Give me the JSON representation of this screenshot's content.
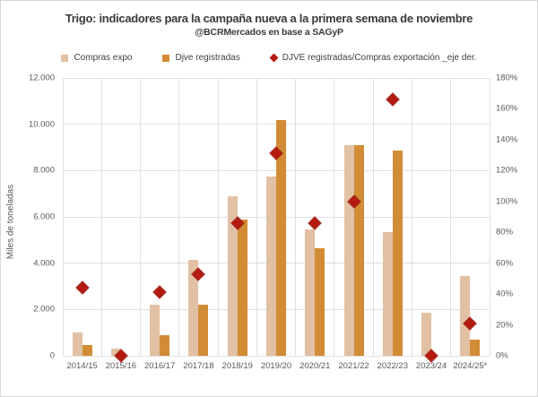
{
  "header": {
    "title": "Trigo: indicadores para la campaña nueva a la primera semana de noviembre",
    "subtitle": "@BCRMercados en base a SAGyP"
  },
  "legend": {
    "items": [
      {
        "label": "Compras expo",
        "marker": "square",
        "color": "#e2c0a3"
      },
      {
        "label": "Djve registradas",
        "marker": "square",
        "color": "#d18c35"
      },
      {
        "label": "DJVE registradas/Compras exportación _eje der.",
        "marker": "diamond",
        "color": "#b41a10"
      }
    ]
  },
  "colors": {
    "compras_expo": "#e2c0a3",
    "djve_registradas": "#d18c35",
    "ratio_diamond": "#b41a10",
    "gridline": "#e0e0e0",
    "axis_text": "#595959",
    "title_text": "#3a3a3a"
  },
  "chart_data": {
    "type": "bar",
    "title": "Trigo: indicadores para la campaña nueva a la primera semana de noviembre",
    "subtitle": "@BCRMercados en base a SAGyP",
    "grid": true,
    "legend_position": "top",
    "categories": [
      "2014/15",
      "2015/16",
      "2016/17",
      "2017/18",
      "2018/19",
      "2019/20",
      "2020/21",
      "2021/22",
      "2022/23",
      "2023/24",
      "2024/25*"
    ],
    "series": [
      {
        "name": "Compras expo",
        "type": "bar",
        "axis": "left",
        "color": "#e2c0a3",
        "values": [
          1000,
          300,
          2200,
          4150,
          6900,
          7750,
          5450,
          9100,
          5350,
          1850,
          3450
        ]
      },
      {
        "name": "Djve registradas",
        "type": "bar",
        "axis": "left",
        "color": "#d18c35",
        "values": [
          450,
          0,
          900,
          2200,
          5900,
          10200,
          4650,
          9100,
          8850,
          0,
          700
        ]
      },
      {
        "name": "DJVE registradas/Compras exportación _eje der.",
        "type": "scatter",
        "marker": "diamond",
        "axis": "right",
        "color": "#b41a10",
        "values": [
          44,
          0,
          41,
          53,
          86,
          131,
          86,
          100,
          166,
          0,
          21
        ]
      }
    ],
    "left_axis": {
      "label": "Miles de toneladas",
      "min": 0,
      "max": 12000,
      "step": 2000,
      "tick_labels": [
        "0",
        "2.000",
        "4.000",
        "6.000",
        "8.000",
        "10.000",
        "12.000"
      ]
    },
    "right_axis": {
      "label": "",
      "min": 0,
      "max": 180,
      "step": 20,
      "tick_labels": [
        "0%",
        "20%",
        "40%",
        "60%",
        "80%",
        "100%",
        "120%",
        "140%",
        "160%",
        "180%"
      ]
    }
  }
}
